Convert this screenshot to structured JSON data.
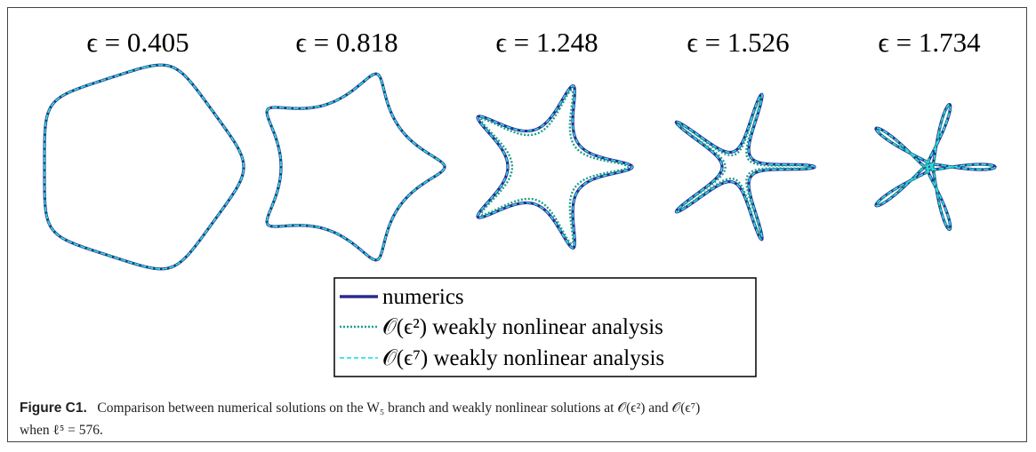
{
  "panels": [
    {
      "label": "ϵ = 0.405"
    },
    {
      "label": "ϵ = 0.818"
    },
    {
      "label": "ϵ = 1.248"
    },
    {
      "label": "ϵ = 1.526"
    },
    {
      "label": "ϵ = 1.734"
    }
  ],
  "legend": {
    "entries": [
      "numerics",
      "𝒪(ϵ²) weakly nonlinear analysis",
      "𝒪(ϵ⁷) weakly nonlinear analysis"
    ]
  },
  "caption": {
    "label": "Figure C1.",
    "lines": [
      "Comparison between numerical solutions on the W₅ branch and weakly nonlinear solutions at 𝒪(ϵ²) and 𝒪(ϵ⁷)",
      "when ℓ⁵ = 576."
    ]
  }
}
